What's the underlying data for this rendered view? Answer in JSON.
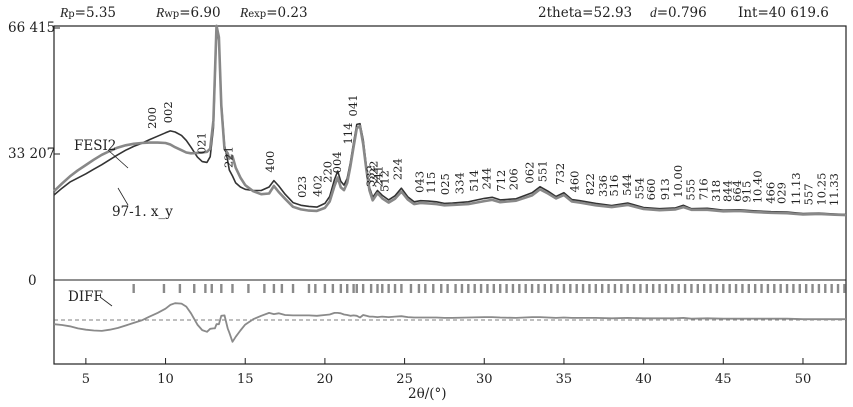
{
  "header": {
    "rp_label": "p",
    "rp_value": "=5.35",
    "rwp_label": "wp",
    "rwp_value": "=6.90",
    "rexp_label": "exp",
    "rexp_value": "=0.23",
    "twotheta_text": "2theta=52.93",
    "d_label": "d",
    "d_value": "=0.796",
    "int_text": "Int=40 619.6"
  },
  "chart_data": {
    "type": "line",
    "x_range": [
      3,
      52.7
    ],
    "y_ticks": [
      {
        "value": 66415,
        "label": "66 415"
      },
      {
        "value": 33207,
        "label": "33 207"
      },
      {
        "value": 0,
        "label": "0"
      }
    ],
    "x_ticks": [
      5,
      10,
      15,
      20,
      25,
      30,
      35,
      40,
      45,
      50
    ],
    "xlabel": "2θ/(°)",
    "colors": {
      "observed": "#333333",
      "calculated": "#888888",
      "diff": "#8a8a8a",
      "ticks": "#8a8a8a",
      "axes": "#222222"
    },
    "annotations": [
      {
        "text": "FESI2"
      },
      {
        "text": "97-1. x_y"
      },
      {
        "text": "DIFF"
      }
    ],
    "peaks": [
      {
        "label": "200",
        "x": 9.4
      },
      {
        "label": "002",
        "x": 10.4
      },
      {
        "label": "021",
        "x": 12.5
      },
      {
        "label": "221",
        "x": 14.2
      },
      {
        "label": "400",
        "x": 16.8
      },
      {
        "label": "023",
        "x": 18.8
      },
      {
        "label": "402",
        "x": 19.8
      },
      {
        "label": "220",
        "x": 20.4
      },
      {
        "label": "004",
        "x": 21.0
      },
      {
        "label": "114",
        "x": 21.7
      },
      {
        "label": "041",
        "x": 22.0
      },
      {
        "label": "332",
        "x": 23.1
      },
      {
        "label": "222",
        "x": 23.3
      },
      {
        "label": "241",
        "x": 23.6
      },
      {
        "label": "512",
        "x": 24.0
      },
      {
        "label": "224",
        "x": 24.8
      },
      {
        "label": "043",
        "x": 26.2
      },
      {
        "label": "115",
        "x": 26.9
      },
      {
        "label": "025",
        "x": 27.8
      },
      {
        "label": "334",
        "x": 28.7
      },
      {
        "label": "514",
        "x": 29.6
      },
      {
        "label": "244",
        "x": 30.4
      },
      {
        "label": "712",
        "x": 31.3
      },
      {
        "label": "206",
        "x": 32.1
      },
      {
        "label": "062",
        "x": 33.1
      },
      {
        "label": "551",
        "x": 33.9
      },
      {
        "label": "732",
        "x": 35.0
      },
      {
        "label": "460",
        "x": 35.9
      },
      {
        "label": "822",
        "x": 36.9
      },
      {
        "label": "336",
        "x": 37.7
      },
      {
        "label": "516",
        "x": 38.4
      },
      {
        "label": "544",
        "x": 39.2
      },
      {
        "label": "554",
        "x": 40.0
      },
      {
        "label": "660",
        "x": 40.7
      },
      {
        "label": "913",
        "x": 41.6
      },
      {
        "label": "10.00",
        "x": 42.4
      },
      {
        "label": "555",
        "x": 43.2
      },
      {
        "label": "716",
        "x": 44.0
      },
      {
        "label": "318",
        "x": 44.8
      },
      {
        "label": "844",
        "x": 45.5
      },
      {
        "label": "664",
        "x": 46.1
      },
      {
        "label": "915",
        "x": 46.7
      },
      {
        "label": "10.40",
        "x": 47.4
      },
      {
        "label": "466",
        "x": 48.2
      },
      {
        "label": "029",
        "x": 48.9
      },
      {
        "label": "11.13",
        "x": 49.8
      },
      {
        "label": "557",
        "x": 50.6
      },
      {
        "label": "10.25",
        "x": 51.4
      },
      {
        "label": "11.33",
        "x": 52.2
      }
    ],
    "series": [
      {
        "key": "observed",
        "x": [
          3.0,
          3.5,
          4,
          4.5,
          5,
          5.5,
          6,
          6.5,
          7,
          7.5,
          8,
          8.5,
          9,
          9.5,
          10,
          10.3,
          10.6,
          11,
          11.3,
          11.6,
          12,
          12.3,
          12.6,
          12.8,
          13.0,
          13.1,
          13.2,
          13.35,
          13.5,
          13.7,
          13.9,
          14.0,
          14.2,
          14.4,
          14.7,
          15.0,
          15.5,
          16.0,
          16.5,
          16.8,
          17.1,
          17.5,
          18.0,
          18.5,
          19.0,
          19.5,
          20.0,
          20.3,
          20.6,
          20.8,
          21.0,
          21.2,
          21.4,
          21.6,
          21.8,
          22.0,
          22.2,
          22.4,
          22.6,
          22.8,
          23.0,
          23.3,
          23.6,
          24.0,
          24.4,
          24.8,
          25.2,
          25.6,
          26.0,
          26.5,
          27.0,
          27.5,
          28,
          29,
          30,
          30.5,
          31,
          32,
          33,
          33.5,
          34,
          34.5,
          35,
          35.5,
          36,
          37,
          38,
          39,
          40,
          41,
          42,
          42.5,
          43,
          44,
          45,
          46,
          47,
          48,
          49,
          50,
          51,
          52,
          52.7
        ],
        "y": [
          22400,
          24200,
          25800,
          26900,
          28000,
          29200,
          30400,
          31700,
          33000,
          34200,
          35200,
          36000,
          37000,
          37900,
          38800,
          39300,
          39000,
          38100,
          36800,
          35000,
          32400,
          31200,
          31000,
          32500,
          40000,
          52000,
          66000,
          63000,
          47000,
          35600,
          31400,
          29000,
          27400,
          25600,
          24500,
          23900,
          23600,
          23600,
          24500,
          26200,
          24800,
          22600,
          20400,
          19700,
          19400,
          19200,
          20200,
          22000,
          26500,
          28700,
          26000,
          25000,
          26800,
          31000,
          36200,
          41000,
          41200,
          37000,
          30200,
          24400,
          21800,
          23600,
          22300,
          21100,
          22200,
          24200,
          21900,
          20600,
          20900,
          20800,
          20600,
          20200,
          20300,
          20600,
          21500,
          21800,
          21100,
          21400,
          23000,
          24600,
          23400,
          22000,
          23000,
          21200,
          20900,
          20200,
          19600,
          20300,
          19100,
          18800,
          19000,
          19700,
          18800,
          18900,
          18400,
          18500,
          18200,
          18000,
          17900,
          17500,
          17600,
          17400,
          17300
        ]
      },
      {
        "key": "calculated",
        "x": [
          3.0,
          3.5,
          4,
          4.5,
          5,
          5.5,
          6,
          6.5,
          7,
          7.5,
          8,
          8.5,
          9,
          9.5,
          10,
          10.3,
          10.6,
          11,
          11.3,
          11.6,
          12,
          12.3,
          12.6,
          12.8,
          13.0,
          13.1,
          13.2,
          13.35,
          13.5,
          13.7,
          13.9,
          14.0,
          14.2,
          14.4,
          14.7,
          15.0,
          15.5,
          16.0,
          16.5,
          16.8,
          17.1,
          17.5,
          18.0,
          18.5,
          19.0,
          19.5,
          20.0,
          20.3,
          20.6,
          20.8,
          21.0,
          21.2,
          21.4,
          21.6,
          21.8,
          22.0,
          22.2,
          22.4,
          22.6,
          22.8,
          23.0,
          23.3,
          23.6,
          24.0,
          24.4,
          24.8,
          25.2,
          25.6,
          26.0,
          26.5,
          27.0,
          27.5,
          28,
          29,
          30,
          30.5,
          31,
          32,
          33,
          33.5,
          34,
          34.5,
          35,
          35.5,
          36,
          37,
          38,
          39,
          40,
          41,
          42,
          42.5,
          43,
          44,
          45,
          46,
          47,
          48,
          49,
          50,
          51,
          52,
          52.7
        ],
        "y": [
          23400,
          25400,
          27300,
          28900,
          30300,
          31700,
          33000,
          34000,
          34900,
          35500,
          35900,
          36100,
          36200,
          36200,
          36100,
          35700,
          35000,
          34200,
          33600,
          33400,
          33500,
          33600,
          33800,
          34600,
          42000,
          54000,
          67000,
          64000,
          46000,
          34500,
          33400,
          32000,
          32600,
          29600,
          27000,
          25000,
          23400,
          22600,
          22800,
          24800,
          23200,
          21400,
          19300,
          18600,
          18300,
          18200,
          19000,
          20700,
          24800,
          27000,
          24400,
          23700,
          25600,
          30000,
          35100,
          40000,
          40600,
          35800,
          29200,
          23600,
          21000,
          22900,
          21500,
          20400,
          21400,
          23300,
          21200,
          20000,
          20300,
          20200,
          20000,
          19700,
          19800,
          20000,
          20800,
          21100,
          20500,
          20900,
          22300,
          23900,
          22800,
          21500,
          22400,
          20700,
          20400,
          19700,
          19200,
          19800,
          18700,
          18400,
          18600,
          19200,
          18500,
          18500,
          18100,
          18200,
          17900,
          17700,
          17600,
          17300,
          17400,
          17200,
          17100
        ]
      }
    ],
    "diff": {
      "x": [
        3.0,
        3.5,
        4,
        4.5,
        5,
        5.5,
        6,
        6.5,
        7,
        7.5,
        8,
        8.5,
        9,
        9.5,
        10,
        10.3,
        10.6,
        11,
        11.3,
        11.6,
        12,
        12.3,
        12.6,
        12.8,
        13.0,
        13.1,
        13.2,
        13.35,
        13.5,
        13.7,
        13.9,
        14.0,
        14.2,
        14.4,
        14.7,
        15.0,
        15.5,
        16.0,
        16.5,
        16.8,
        17.1,
        17.5,
        18.0,
        18.5,
        19.0,
        19.5,
        20.0,
        20.3,
        20.6,
        20.8,
        21.0,
        21.2,
        21.4,
        21.6,
        21.8,
        22.0,
        22.2,
        22.4,
        22.6,
        22.8,
        23.0,
        23.3,
        23.6,
        24.0,
        24.4,
        24.8,
        25.2,
        25.6,
        26.0,
        26.5,
        27.0,
        27.5,
        28,
        29,
        30,
        30.5,
        31,
        32,
        33,
        33.5,
        34,
        34.5,
        35,
        35.5,
        36,
        37,
        38,
        39,
        40,
        41,
        42,
        42.5,
        43,
        44,
        45,
        46,
        47,
        48,
        49,
        50,
        51,
        52,
        52.7
      ],
      "y": [
        -1000,
        -1200,
        -1500,
        -2000,
        -2300,
        -2500,
        -2600,
        -2300,
        -1900,
        -1300,
        -700,
        -100,
        800,
        1700,
        2700,
        3600,
        4000,
        3900,
        3200,
        1600,
        -1100,
        -2400,
        -2800,
        -2100,
        -2000,
        -2000,
        -1000,
        -1000,
        1000,
        1100,
        -2000,
        -3000,
        -5200,
        -4000,
        -2500,
        -1100,
        200,
        1000,
        1700,
        1400,
        1600,
        1200,
        1100,
        1100,
        1100,
        1000,
        1200,
        1300,
        1700,
        1700,
        1600,
        1300,
        1200,
        1000,
        1100,
        1000,
        600,
        1200,
        1000,
        800,
        800,
        700,
        800,
        700,
        800,
        900,
        700,
        600,
        600,
        600,
        600,
        500,
        500,
        600,
        700,
        700,
        600,
        500,
        700,
        700,
        600,
        500,
        600,
        500,
        500,
        500,
        400,
        500,
        400,
        400,
        400,
        500,
        300,
        400,
        300,
        300,
        300,
        300,
        300,
        200,
        200,
        200,
        200
      ]
    },
    "reflection_ticks": [
      8.0,
      9.9,
      10.9,
      11.8,
      12.5,
      12.9,
      13.5,
      14.2,
      15.2,
      16.2,
      16.8,
      17.3,
      18.0,
      19.0,
      19.4,
      20.0,
      20.5,
      21.0,
      21.4,
      21.8,
      22.0,
      22.4,
      22.9,
      23.3,
      23.6,
      24.0,
      24.4,
      24.8,
      25.4,
      25.9,
      26.3,
      26.8,
      27.3,
      27.7,
      28.2,
      28.6,
      29.0,
      29.4,
      29.8,
      30.2,
      30.6,
      31.0,
      31.4,
      31.8,
      32.2,
      32.6,
      33.0,
      33.4,
      33.8,
      34.2,
      34.6,
      35.0,
      35.4,
      35.8,
      36.2,
      36.6,
      37.0,
      37.4,
      37.8,
      38.2,
      38.6,
      39.0,
      39.4,
      39.8,
      40.2,
      40.6,
      41.0,
      41.4,
      41.8,
      42.2,
      42.6,
      43.0,
      43.4,
      43.8,
      44.2,
      44.6,
      45.0,
      45.4,
      45.8,
      46.2,
      46.6,
      47.0,
      47.4,
      47.8,
      48.2,
      48.6,
      49.0,
      49.4,
      49.8,
      50.2,
      50.6,
      51.0,
      51.4,
      51.8,
      52.2,
      52.6
    ]
  }
}
